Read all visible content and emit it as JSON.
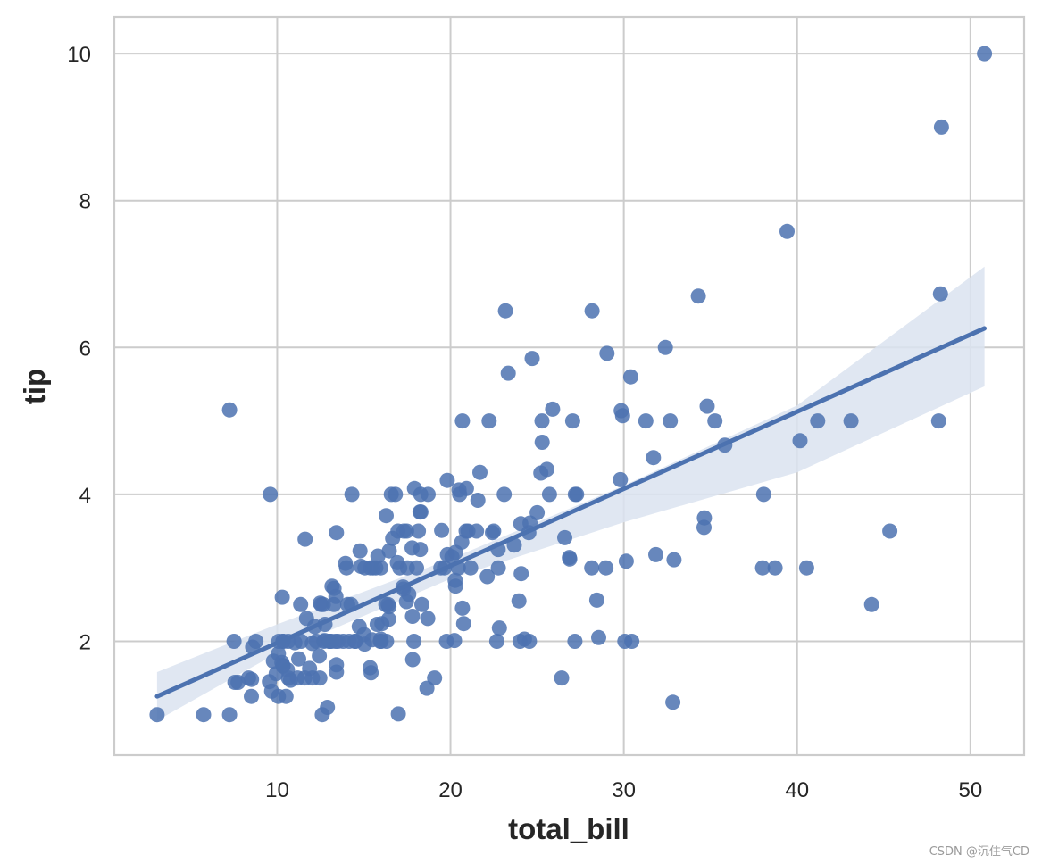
{
  "watermark": "CSDN @沉住气CD",
  "chart_data": {
    "type": "scatter",
    "title": "",
    "xlabel": "total_bill",
    "ylabel": "tip",
    "xlim": [
      0.6,
      53.1
    ],
    "ylim": [
      0.45,
      10.5
    ],
    "xticks": [
      10,
      20,
      30,
      40,
      50
    ],
    "yticks": [
      2,
      4,
      6,
      8,
      10
    ],
    "grid": true,
    "colors": {
      "points": "#4c72b0",
      "line": "#4c72b0",
      "band": "#dbe3f0",
      "grid": "#cccccc",
      "frame": "#cccccc"
    },
    "regression": {
      "x": [
        3.07,
        50.81
      ],
      "y": [
        1.25,
        6.26
      ],
      "ci_x": [
        3.07,
        10,
        20,
        30,
        40,
        50.81
      ],
      "ci_lower": [
        0.92,
        1.84,
        2.85,
        3.62,
        4.3,
        5.47
      ],
      "ci_upper": [
        1.58,
        2.23,
        3.12,
        4.12,
        5.21,
        7.1
      ]
    },
    "points": [
      [
        3.07,
        1.0
      ],
      [
        5.75,
        1.0
      ],
      [
        7.25,
        1.0
      ],
      [
        7.25,
        5.15
      ],
      [
        7.51,
        2.0
      ],
      [
        7.56,
        1.44
      ],
      [
        7.74,
        1.44
      ],
      [
        8.35,
        1.5
      ],
      [
        8.51,
        1.25
      ],
      [
        8.52,
        1.48
      ],
      [
        8.58,
        1.92
      ],
      [
        8.77,
        2.0
      ],
      [
        9.55,
        1.45
      ],
      [
        9.6,
        4.0
      ],
      [
        9.68,
        1.32
      ],
      [
        9.78,
        1.73
      ],
      [
        9.94,
        1.56
      ],
      [
        10.07,
        1.83
      ],
      [
        10.07,
        1.25
      ],
      [
        10.09,
        2.0
      ],
      [
        10.27,
        1.71
      ],
      [
        10.29,
        2.6
      ],
      [
        10.33,
        1.67
      ],
      [
        10.33,
        2.0
      ],
      [
        10.34,
        1.66
      ],
      [
        10.34,
        2.0
      ],
      [
        10.51,
        1.25
      ],
      [
        10.59,
        1.61
      ],
      [
        10.63,
        2.0
      ],
      [
        10.65,
        1.5
      ],
      [
        10.77,
        1.47
      ],
      [
        11.02,
        1.98
      ],
      [
        11.17,
        1.5
      ],
      [
        11.24,
        1.76
      ],
      [
        11.35,
        2.5
      ],
      [
        11.38,
        2.0
      ],
      [
        11.59,
        1.5
      ],
      [
        11.61,
        3.39
      ],
      [
        11.69,
        2.31
      ],
      [
        11.87,
        1.63
      ],
      [
        12.02,
        1.97
      ],
      [
        12.03,
        1.5
      ],
      [
        12.16,
        2.2
      ],
      [
        12.26,
        2.0
      ],
      [
        12.43,
        1.8
      ],
      [
        12.46,
        1.5
      ],
      [
        12.48,
        2.52
      ],
      [
        12.54,
        2.5
      ],
      [
        12.6,
        1.0
      ],
      [
        12.66,
        2.5
      ],
      [
        12.69,
        2.0
      ],
      [
        12.74,
        2.01
      ],
      [
        12.76,
        2.23
      ],
      [
        12.9,
        1.1
      ],
      [
        13.0,
        2.0
      ],
      [
        13.03,
        2.0
      ],
      [
        13.13,
        2.0
      ],
      [
        13.16,
        2.75
      ],
      [
        13.27,
        2.5
      ],
      [
        13.28,
        2.72
      ],
      [
        13.37,
        2.0
      ],
      [
        13.39,
        2.61
      ],
      [
        13.42,
        1.58
      ],
      [
        13.42,
        3.48
      ],
      [
        13.42,
        1.68
      ],
      [
        13.51,
        2.0
      ],
      [
        13.81,
        2.0
      ],
      [
        13.94,
        3.06
      ],
      [
        14.0,
        3.0
      ],
      [
        14.07,
        2.5
      ],
      [
        14.15,
        2.0
      ],
      [
        14.26,
        2.5
      ],
      [
        14.31,
        4.0
      ],
      [
        14.48,
        2.0
      ],
      [
        14.52,
        2.0
      ],
      [
        14.73,
        2.2
      ],
      [
        14.78,
        3.23
      ],
      [
        14.83,
        3.02
      ],
      [
        15.01,
        2.09
      ],
      [
        15.04,
        1.96
      ],
      [
        15.06,
        3.0
      ],
      [
        15.36,
        1.64
      ],
      [
        15.38,
        3.0
      ],
      [
        15.42,
        1.57
      ],
      [
        15.48,
        2.02
      ],
      [
        15.53,
        3.0
      ],
      [
        15.69,
        3.0
      ],
      [
        15.77,
        2.23
      ],
      [
        15.81,
        3.16
      ],
      [
        15.95,
        2.0
      ],
      [
        15.98,
        2.03
      ],
      [
        15.98,
        3.0
      ],
      [
        16.0,
        2.0
      ],
      [
        16.04,
        2.24
      ],
      [
        16.27,
        2.5
      ],
      [
        16.29,
        3.71
      ],
      [
        16.31,
        2.0
      ],
      [
        16.4,
        2.5
      ],
      [
        16.43,
        2.3
      ],
      [
        16.45,
        2.47
      ],
      [
        16.47,
        3.23
      ],
      [
        16.58,
        4.0
      ],
      [
        16.66,
        3.4
      ],
      [
        16.82,
        4.0
      ],
      [
        16.93,
        3.07
      ],
      [
        16.97,
        3.5
      ],
      [
        16.99,
        1.01
      ],
      [
        17.07,
        3.0
      ],
      [
        17.26,
        2.74
      ],
      [
        17.29,
        2.71
      ],
      [
        17.31,
        3.5
      ],
      [
        17.46,
        2.54
      ],
      [
        17.47,
        3.5
      ],
      [
        17.51,
        3.0
      ],
      [
        17.59,
        2.64
      ],
      [
        17.78,
        3.27
      ],
      [
        17.81,
        2.34
      ],
      [
        17.82,
        1.75
      ],
      [
        17.89,
        2.0
      ],
      [
        17.92,
        4.08
      ],
      [
        18.04,
        3.0
      ],
      [
        18.15,
        3.5
      ],
      [
        18.24,
        3.76
      ],
      [
        18.26,
        3.25
      ],
      [
        18.28,
        4.0
      ],
      [
        18.29,
        3.76
      ],
      [
        18.35,
        2.5
      ],
      [
        18.64,
        1.36
      ],
      [
        18.69,
        2.31
      ],
      [
        18.71,
        4.0
      ],
      [
        19.08,
        1.5
      ],
      [
        19.44,
        3.0
      ],
      [
        19.49,
        3.51
      ],
      [
        19.65,
        3.0
      ],
      [
        19.77,
        2.0
      ],
      [
        19.81,
        4.19
      ],
      [
        19.82,
        3.18
      ],
      [
        20.08,
        3.15
      ],
      [
        20.23,
        2.01
      ],
      [
        20.27,
        2.83
      ],
      [
        20.29,
        3.21
      ],
      [
        20.29,
        2.75
      ],
      [
        20.45,
        3.0
      ],
      [
        20.49,
        4.06
      ],
      [
        20.53,
        4.0
      ],
      [
        20.65,
        3.35
      ],
      [
        20.69,
        2.45
      ],
      [
        20.69,
        5.0
      ],
      [
        20.76,
        2.24
      ],
      [
        20.9,
        3.5
      ],
      [
        20.92,
        4.08
      ],
      [
        21.01,
        3.5
      ],
      [
        21.16,
        3.0
      ],
      [
        21.5,
        3.5
      ],
      [
        21.58,
        3.92
      ],
      [
        21.7,
        4.3
      ],
      [
        22.12,
        2.88
      ],
      [
        22.23,
        5.0
      ],
      [
        22.42,
        3.48
      ],
      [
        22.49,
        3.5
      ],
      [
        22.67,
        2.0
      ],
      [
        22.75,
        3.25
      ],
      [
        22.76,
        3.0
      ],
      [
        22.82,
        2.18
      ],
      [
        23.1,
        4.0
      ],
      [
        23.17,
        6.5
      ],
      [
        23.33,
        5.65
      ],
      [
        23.68,
        3.31
      ],
      [
        23.95,
        2.55
      ],
      [
        24.01,
        2.0
      ],
      [
        24.06,
        3.6
      ],
      [
        24.08,
        2.92
      ],
      [
        24.27,
        2.03
      ],
      [
        24.52,
        3.48
      ],
      [
        24.55,
        2.0
      ],
      [
        24.59,
        3.61
      ],
      [
        24.71,
        5.85
      ],
      [
        25.0,
        3.75
      ],
      [
        25.21,
        4.29
      ],
      [
        25.28,
        5.0
      ],
      [
        25.29,
        4.71
      ],
      [
        25.56,
        4.34
      ],
      [
        25.71,
        4.0
      ],
      [
        25.89,
        5.16
      ],
      [
        26.41,
        1.5
      ],
      [
        26.59,
        3.41
      ],
      [
        26.86,
        3.14
      ],
      [
        26.88,
        3.12
      ],
      [
        27.05,
        5.0
      ],
      [
        27.18,
        2.0
      ],
      [
        27.2,
        4.0
      ],
      [
        27.28,
        4.0
      ],
      [
        28.15,
        3.0
      ],
      [
        28.17,
        6.5
      ],
      [
        28.44,
        2.56
      ],
      [
        28.55,
        2.05
      ],
      [
        28.97,
        3.0
      ],
      [
        29.03,
        5.92
      ],
      [
        29.8,
        4.2
      ],
      [
        29.85,
        5.14
      ],
      [
        29.93,
        5.07
      ],
      [
        30.06,
        2.0
      ],
      [
        30.14,
        3.09
      ],
      [
        30.4,
        5.6
      ],
      [
        30.46,
        2.0
      ],
      [
        31.27,
        5.0
      ],
      [
        31.71,
        4.5
      ],
      [
        31.85,
        3.18
      ],
      [
        32.4,
        6.0
      ],
      [
        32.68,
        5.0
      ],
      [
        32.83,
        1.17
      ],
      [
        32.9,
        3.11
      ],
      [
        34.3,
        6.7
      ],
      [
        34.63,
        3.55
      ],
      [
        34.65,
        3.68
      ],
      [
        34.81,
        5.2
      ],
      [
        35.26,
        5.0
      ],
      [
        35.83,
        4.67
      ],
      [
        38.07,
        4.0
      ],
      [
        38.01,
        3.0
      ],
      [
        38.73,
        3.0
      ],
      [
        39.42,
        7.58
      ],
      [
        40.17,
        4.73
      ],
      [
        40.55,
        3.0
      ],
      [
        41.19,
        5.0
      ],
      [
        43.11,
        5.0
      ],
      [
        44.3,
        2.5
      ],
      [
        45.35,
        3.5
      ],
      [
        48.17,
        5.0
      ],
      [
        48.27,
        6.73
      ],
      [
        48.33,
        9.0
      ],
      [
        50.81,
        10.0
      ]
    ]
  }
}
